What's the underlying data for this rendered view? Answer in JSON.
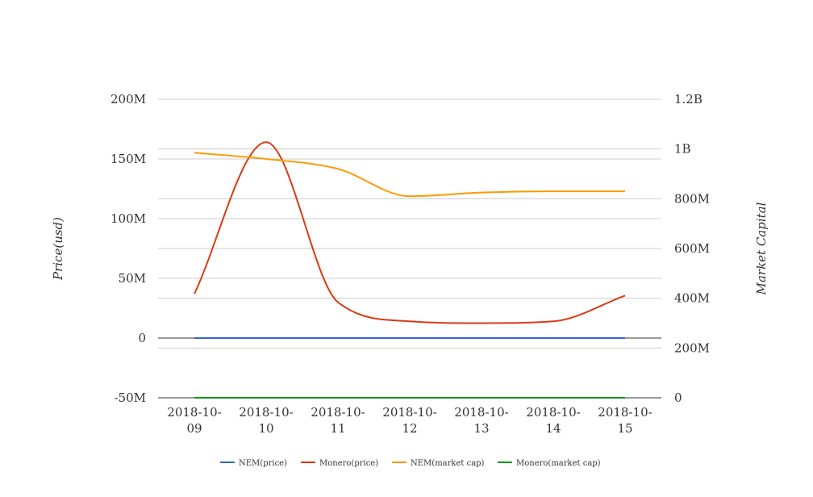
{
  "chart_data": {
    "type": "line",
    "categories": [
      "2018-10-09",
      "2018-10-10",
      "2018-10-11",
      "2018-10-12",
      "2018-10-13",
      "2018-10-14",
      "2018-10-15"
    ],
    "y_left": {
      "label": "Price(usd)",
      "range": [
        -50000000,
        200000000
      ],
      "ticks": [
        {
          "value": -50000000,
          "label": "-50M"
        },
        {
          "value": 0,
          "label": "0"
        },
        {
          "value": 50000000,
          "label": "50M"
        },
        {
          "value": 100000000,
          "label": "100M"
        },
        {
          "value": 150000000,
          "label": "150M"
        },
        {
          "value": 200000000,
          "label": "200M"
        }
      ]
    },
    "y_right": {
      "label": "Market Capital",
      "range": [
        0,
        1200000000
      ],
      "ticks": [
        {
          "value": 0,
          "label": "0"
        },
        {
          "value": 200000000,
          "label": "200M"
        },
        {
          "value": 400000000,
          "label": "400M"
        },
        {
          "value": 600000000,
          "label": "600M"
        },
        {
          "value": 800000000,
          "label": "800M"
        },
        {
          "value": 1000000000,
          "label": "1B"
        },
        {
          "value": 1200000000,
          "label": "1.2B"
        }
      ]
    },
    "series": [
      {
        "name": "NEM(price)",
        "axis": "left",
        "color": "#3366cc",
        "values": [
          0.08,
          0.08,
          0.08,
          0.07,
          0.08,
          0.08,
          0.08
        ]
      },
      {
        "name": "Monero(price)",
        "axis": "left",
        "color": "#dc3912",
        "values": [
          37000000,
          164000000,
          30000000,
          14000000,
          12500000,
          14000000,
          35500000
        ]
      },
      {
        "name": "NEM(market cap)",
        "axis": "right",
        "color": "#ff9900",
        "values": [
          985000000,
          960000000,
          920000000,
          810000000,
          825000000,
          830000000,
          830000000
        ]
      },
      {
        "name": "Monero(market cap)",
        "axis": "right",
        "color": "#109618",
        "values": [
          1000,
          1000,
          1000,
          1000,
          1000,
          1000,
          1000
        ]
      }
    ],
    "grid": true,
    "legend": "bottom"
  }
}
